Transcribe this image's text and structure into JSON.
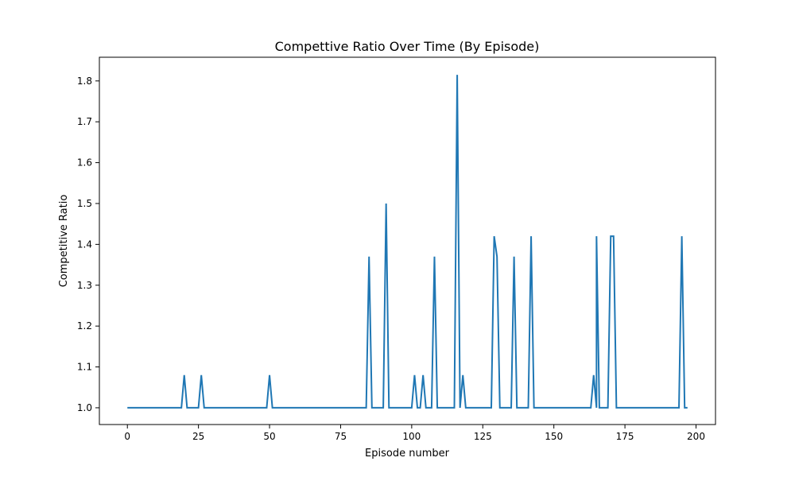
{
  "chart_data": {
    "type": "line",
    "title": "Compettive Ratio Over Time (By Episode)",
    "xlabel": "Episode number",
    "ylabel": "Competitive Ratio",
    "xlim": [
      -9.85,
      206.85
    ],
    "ylim": [
      0.959,
      1.858
    ],
    "x_ticks": [
      0,
      25,
      50,
      75,
      100,
      125,
      150,
      175,
      200
    ],
    "y_ticks": [
      1.0,
      1.1,
      1.2,
      1.3,
      1.4,
      1.5,
      1.6,
      1.7,
      1.8
    ],
    "y_tick_labels": [
      "1.0",
      "1.1",
      "1.2",
      "1.3",
      "1.4",
      "1.5",
      "1.6",
      "1.7",
      "1.8"
    ],
    "grid": false,
    "line_color": "#1f77b4",
    "series": [
      {
        "points": [
          [
            0,
            1.0
          ],
          [
            19,
            1.0
          ],
          [
            20,
            1.08
          ],
          [
            21,
            1.0
          ],
          [
            25,
            1.0
          ],
          [
            26,
            1.08
          ],
          [
            27,
            1.0
          ],
          [
            49,
            1.0
          ],
          [
            50,
            1.08
          ],
          [
            51,
            1.0
          ],
          [
            84,
            1.0
          ],
          [
            85,
            1.37
          ],
          [
            86,
            1.0
          ],
          [
            90,
            1.0
          ],
          [
            91,
            1.5
          ],
          [
            92,
            1.0
          ],
          [
            100,
            1.0
          ],
          [
            101,
            1.08
          ],
          [
            102,
            1.0
          ],
          [
            103,
            1.0
          ],
          [
            104,
            1.08
          ],
          [
            105,
            1.0
          ],
          [
            107,
            1.0
          ],
          [
            108,
            1.37
          ],
          [
            109,
            1.0
          ],
          [
            115,
            1.0
          ],
          [
            116,
            1.815
          ],
          [
            117,
            1.0
          ],
          [
            118,
            1.08
          ],
          [
            119,
            1.0
          ],
          [
            128,
            1.0
          ],
          [
            129,
            1.42
          ],
          [
            130,
            1.37
          ],
          [
            131,
            1.0
          ],
          [
            135,
            1.0
          ],
          [
            136,
            1.37
          ],
          [
            137,
            1.0
          ],
          [
            141,
            1.0
          ],
          [
            142,
            1.42
          ],
          [
            143,
            1.0
          ],
          [
            163,
            1.0
          ],
          [
            164,
            1.08
          ],
          [
            165,
            1.0
          ],
          [
            165,
            1.42
          ],
          [
            166,
            1.0
          ],
          [
            169,
            1.0
          ],
          [
            170,
            1.42
          ],
          [
            171,
            1.42
          ],
          [
            172,
            1.0
          ],
          [
            194,
            1.0
          ],
          [
            195,
            1.42
          ],
          [
            196,
            1.0
          ],
          [
            197,
            1.0
          ]
        ]
      }
    ]
  }
}
